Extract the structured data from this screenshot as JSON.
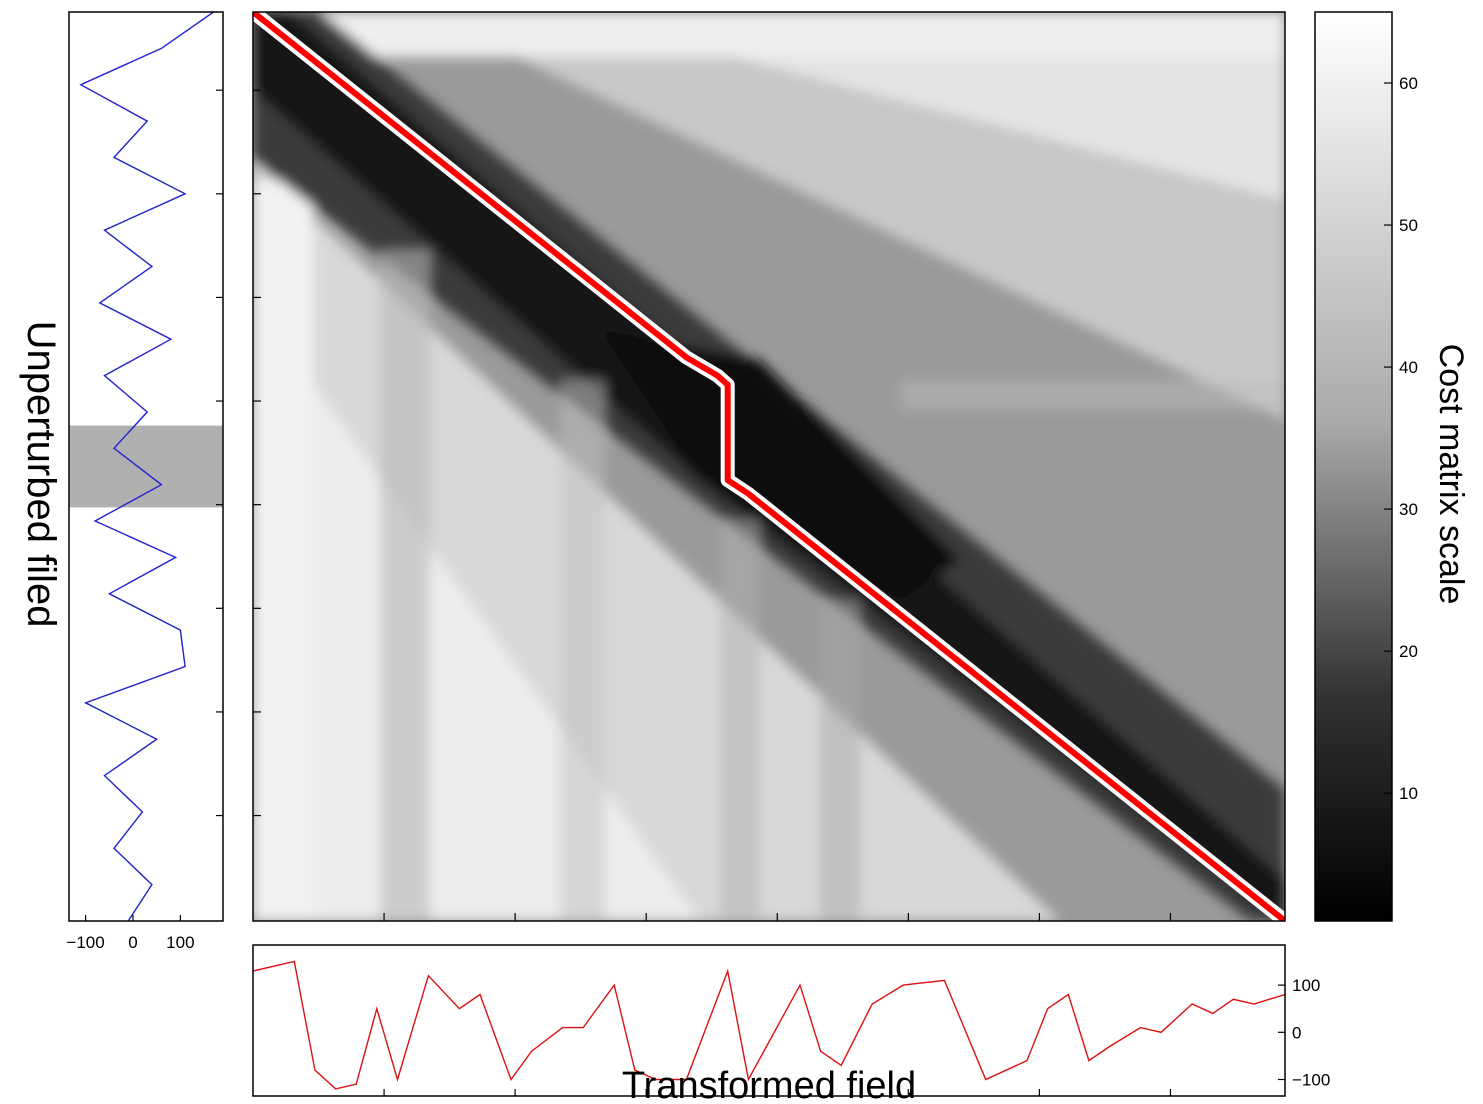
{
  "chart_data": [
    {
      "type": "line",
      "panel": "left",
      "ylabel": "Unperturbed filed",
      "xticks": [
        -100,
        0,
        100
      ],
      "xlim": [
        -135,
        190
      ],
      "highlight_band_y": [
        0.455,
        0.545
      ],
      "series": [
        {
          "color": "#2222cc",
          "y": [
            0.0,
            0.04,
            0.08,
            0.12,
            0.16,
            0.2,
            0.24,
            0.28,
            0.32,
            0.36,
            0.4,
            0.44,
            0.48,
            0.52,
            0.56,
            0.6,
            0.64,
            0.68,
            0.72,
            0.76,
            0.8,
            0.84,
            0.88,
            0.92,
            0.96,
            1.0
          ],
          "x": [
            170,
            60,
            -110,
            30,
            -40,
            110,
            -60,
            40,
            -70,
            80,
            -60,
            30,
            -40,
            60,
            -80,
            90,
            -50,
            100,
            110,
            -100,
            50,
            -60,
            20,
            -40,
            40,
            -10
          ]
        }
      ]
    },
    {
      "type": "line",
      "panel": "bottom",
      "xlabel": "Transformed field",
      "yticks": [
        -100,
        0,
        100
      ],
      "ylim": [
        -135,
        185
      ],
      "series": [
        {
          "color": "#dd1111",
          "x": [
            0.0,
            0.04,
            0.06,
            0.08,
            0.1,
            0.12,
            0.14,
            0.17,
            0.2,
            0.22,
            0.25,
            0.27,
            0.3,
            0.32,
            0.35,
            0.37,
            0.39,
            0.42,
            0.46,
            0.48,
            0.53,
            0.55,
            0.57,
            0.6,
            0.63,
            0.67,
            0.71,
            0.75,
            0.77,
            0.79,
            0.81,
            0.83,
            0.86,
            0.88,
            0.91,
            0.93,
            0.95,
            0.97,
            1.0
          ],
          "y": [
            130,
            150,
            -80,
            -120,
            -110,
            50,
            -100,
            120,
            50,
            80,
            -100,
            -40,
            10,
            10,
            100,
            -80,
            -100,
            -100,
            130,
            -100,
            100,
            -40,
            -70,
            60,
            100,
            110,
            -100,
            -60,
            50,
            80,
            -60,
            -30,
            10,
            0,
            60,
            40,
            70,
            60,
            80
          ]
        }
      ]
    },
    {
      "type": "heatmap",
      "panel": "main",
      "colormap": "grayscale",
      "path_color": "#ff0000",
      "path_outline_color": "#ffffff",
      "path": [
        {
          "x": 0.0,
          "y": 0.0
        },
        {
          "x": 0.42,
          "y": 0.38
        },
        {
          "x": 0.45,
          "y": 0.4
        },
        {
          "x": 0.46,
          "y": 0.41
        },
        {
          "x": 0.46,
          "y": 0.515
        },
        {
          "x": 0.48,
          "y": 0.53
        },
        {
          "x": 1.0,
          "y": 1.0
        }
      ]
    },
    {
      "type": "colorbar",
      "panel": "colorbar",
      "label": "Cost matrix scale",
      "ticks": [
        10,
        20,
        30,
        40,
        50,
        60
      ],
      "range": [
        1,
        65
      ]
    }
  ]
}
